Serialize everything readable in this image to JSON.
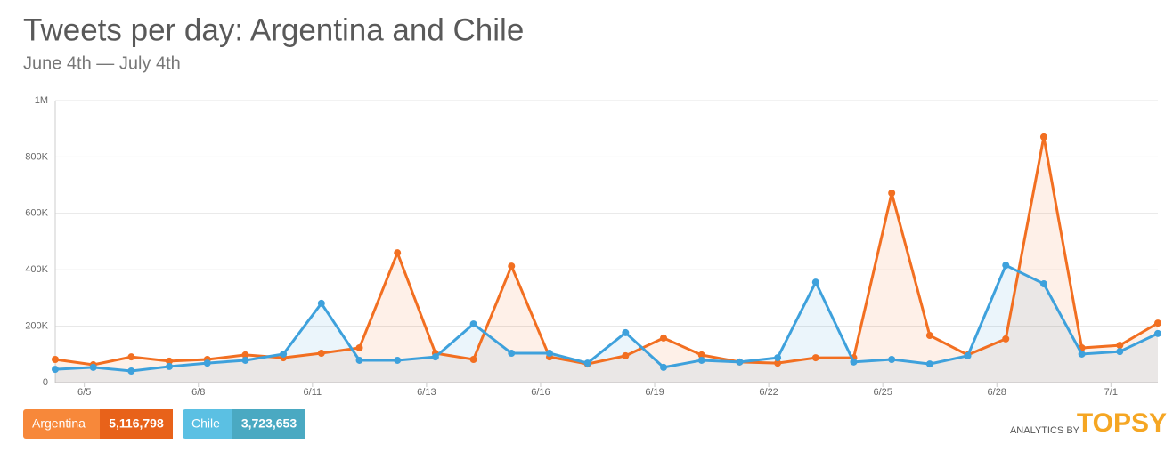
{
  "chart_data": {
    "type": "line",
    "title": "Tweets per day: Argentina and Chile",
    "subtitle": "June 4th — July 4th",
    "categories": [
      null,
      "6/5",
      null,
      null,
      "6/8",
      null,
      null,
      "6/11",
      null,
      null,
      "6/13",
      null,
      null,
      "6/16",
      null,
      null,
      "6/19",
      null,
      null,
      "6/22",
      null,
      null,
      "6/25",
      null,
      null,
      "6/28",
      null,
      null,
      "7/1",
      null
    ],
    "series": [
      {
        "name": "Argentina",
        "color": "#f26f21",
        "total": {
          "value": 5116798,
          "label": "5,116,798"
        },
        "values": [
          82000,
          63000,
          91000,
          76000,
          82000,
          98000,
          88000,
          104000,
          123000,
          460000,
          104000,
          82000,
          413000,
          91000,
          66000,
          95000,
          158000,
          98000,
          73000,
          69000,
          88000,
          88000,
          672000,
          167000,
          98000,
          155000,
          871000,
          123000,
          132000,
          211000
        ]
      },
      {
        "name": "Chile",
        "color": "#3ea1dc",
        "total": {
          "value": 3723653,
          "label": "3,723,653"
        },
        "values": [
          47000,
          54000,
          41000,
          57000,
          69000,
          79000,
          101000,
          281000,
          79000,
          79000,
          91000,
          208000,
          104000,
          104000,
          69000,
          177000,
          54000,
          79000,
          73000,
          88000,
          356000,
          73000,
          82000,
          66000,
          95000,
          416000,
          350000,
          101000,
          110000,
          174000
        ]
      }
    ],
    "ylim": [
      0,
      1000000
    ],
    "yticks": [
      0,
      {
        "value": 200000,
        "label": "200K"
      },
      {
        "value": 400000,
        "label": "400K"
      },
      {
        "value": 600000,
        "label": "600K"
      },
      {
        "value": 800000,
        "label": "800K"
      },
      {
        "value": 1000000,
        "label": "1M"
      }
    ],
    "grid": true,
    "credit": {
      "prefix": "ANALYTICS BY",
      "brand": "TOPSY"
    }
  }
}
